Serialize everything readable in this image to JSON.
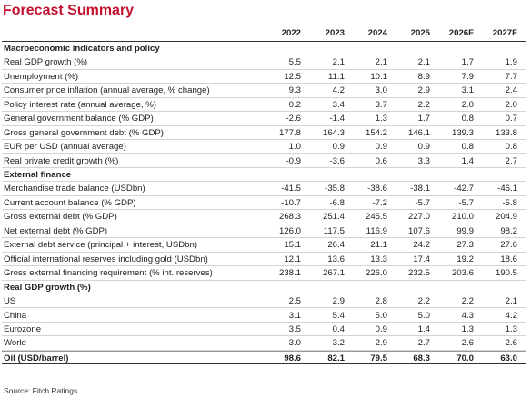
{
  "title": "Forecast Summary",
  "table": {
    "columns": [
      "2022",
      "2023",
      "2024",
      "2025",
      "2026F",
      "2027F"
    ],
    "sections": [
      {
        "title": "Macroeconomic indicators and policy",
        "rows": [
          {
            "label": "Real GDP growth (%)",
            "values": [
              "5.5",
              "2.1",
              "2.1",
              "2.1",
              "1.7",
              "1.9"
            ]
          },
          {
            "label": "Unemployment (%)",
            "values": [
              "12.5",
              "11.1",
              "10.1",
              "8.9",
              "7.9",
              "7.7"
            ]
          },
          {
            "label": "Consumer price inflation (annual average, % change)",
            "values": [
              "9.3",
              "4.2",
              "3.0",
              "2.9",
              "3.1",
              "2.4"
            ]
          },
          {
            "label": "Policy interest rate (annual average, %)",
            "values": [
              "0.2",
              "3.4",
              "3.7",
              "2.2",
              "2.0",
              "2.0"
            ]
          },
          {
            "label": "General government balance (% GDP)",
            "values": [
              "-2.6",
              "-1.4",
              "1.3",
              "1.7",
              "0.8",
              "0.7"
            ]
          },
          {
            "label": "Gross general government debt (% GDP)",
            "values": [
              "177.8",
              "164.3",
              "154.2",
              "146.1",
              "139.3",
              "133.8"
            ]
          },
          {
            "label": "EUR per USD (annual average)",
            "values": [
              "1.0",
              "0.9",
              "0.9",
              "0.9",
              "0.8",
              "0.8"
            ]
          },
          {
            "label": "Real private credit growth (%)",
            "values": [
              "-0.9",
              "-3.6",
              "0.6",
              "3.3",
              "1.4",
              "2.7"
            ]
          }
        ]
      },
      {
        "title": "External finance",
        "rows": [
          {
            "label": "Merchandise trade balance (USDbn)",
            "values": [
              "-41.5",
              "-35.8",
              "-38.6",
              "-38.1",
              "-42.7",
              "-46.1"
            ]
          },
          {
            "label": "Current account balance (% GDP)",
            "values": [
              "-10.7",
              "-6.8",
              "-7.2",
              "-5.7",
              "-5.7",
              "-5.8"
            ]
          },
          {
            "label": "Gross external debt (% GDP)",
            "values": [
              "268.3",
              "251.4",
              "245.5",
              "227.0",
              "210.0",
              "204.9"
            ]
          },
          {
            "label": "Net external debt (% GDP)",
            "values": [
              "126.0",
              "117.5",
              "116.9",
              "107.6",
              "99.9",
              "98.2"
            ]
          },
          {
            "label": "External debt service (principal + interest, USDbn)",
            "values": [
              "15.1",
              "26.4",
              "21.1",
              "24.2",
              "27.3",
              "27.6"
            ]
          },
          {
            "label": "Official international reserves including gold (USDbn)",
            "values": [
              "12.1",
              "13.6",
              "13.3",
              "17.4",
              "19.2",
              "18.6"
            ]
          },
          {
            "label": "Gross external financing requirement (% int. reserves)",
            "values": [
              "238.1",
              "267.1",
              "226.0",
              "232.5",
              "203.6",
              "190.5"
            ]
          }
        ]
      },
      {
        "title": "Real GDP growth (%)",
        "rows": [
          {
            "label": "US",
            "values": [
              "2.5",
              "2.9",
              "2.8",
              "2.2",
              "2.2",
              "2.1"
            ]
          },
          {
            "label": "China",
            "values": [
              "3.1",
              "5.4",
              "5.0",
              "5.0",
              "4.3",
              "4.2"
            ]
          },
          {
            "label": "Eurozone",
            "values": [
              "3.5",
              "0.4",
              "0.9",
              "1.4",
              "1.3",
              "1.3"
            ]
          },
          {
            "label": "World",
            "values": [
              "3.0",
              "3.2",
              "2.9",
              "2.7",
              "2.6",
              "2.6"
            ]
          }
        ]
      }
    ],
    "footer_row": {
      "label": "Oil (USD/barrel)",
      "values": [
        "98.6",
        "82.1",
        "79.5",
        "68.3",
        "70.0",
        "63.0"
      ]
    }
  },
  "source": "Source: Fitch Ratings"
}
